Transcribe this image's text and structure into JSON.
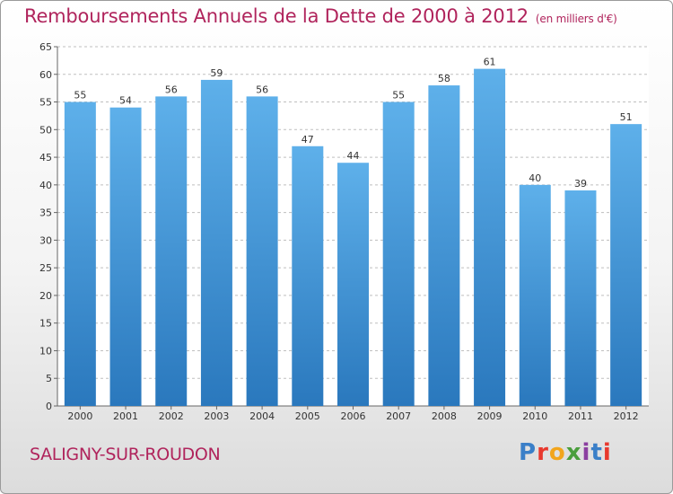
{
  "header": {
    "title": "Remboursements Annuels de la Dette de 2000 à 2012",
    "subtitle": "(en milliers d'€)"
  },
  "footer": {
    "commune": "SALIGNY-SUR-ROUDON",
    "logo_text": "Proxiti",
    "logo_colors": [
      "#3a7fc8",
      "#e8392e",
      "#f2a51c",
      "#4a9e3c",
      "#8b3fa0",
      "#3a7fc8",
      "#e8392e"
    ]
  },
  "colors": {
    "bar_top": "#5eb0ea",
    "bar_bottom": "#2a78bd",
    "grid": "#bfbfbf",
    "title": "#b0245c"
  },
  "chart_data": {
    "type": "bar",
    "categories": [
      "2000",
      "2001",
      "2002",
      "2003",
      "2004",
      "2005",
      "2006",
      "2007",
      "2008",
      "2009",
      "2010",
      "2011",
      "2012"
    ],
    "values": [
      55,
      54,
      56,
      59,
      56,
      47,
      44,
      55,
      58,
      61,
      40,
      39,
      51
    ],
    "ylim": [
      0,
      65
    ],
    "yticks": [
      0,
      5,
      10,
      15,
      20,
      25,
      30,
      35,
      40,
      45,
      50,
      55,
      60,
      65
    ],
    "grid": true
  }
}
